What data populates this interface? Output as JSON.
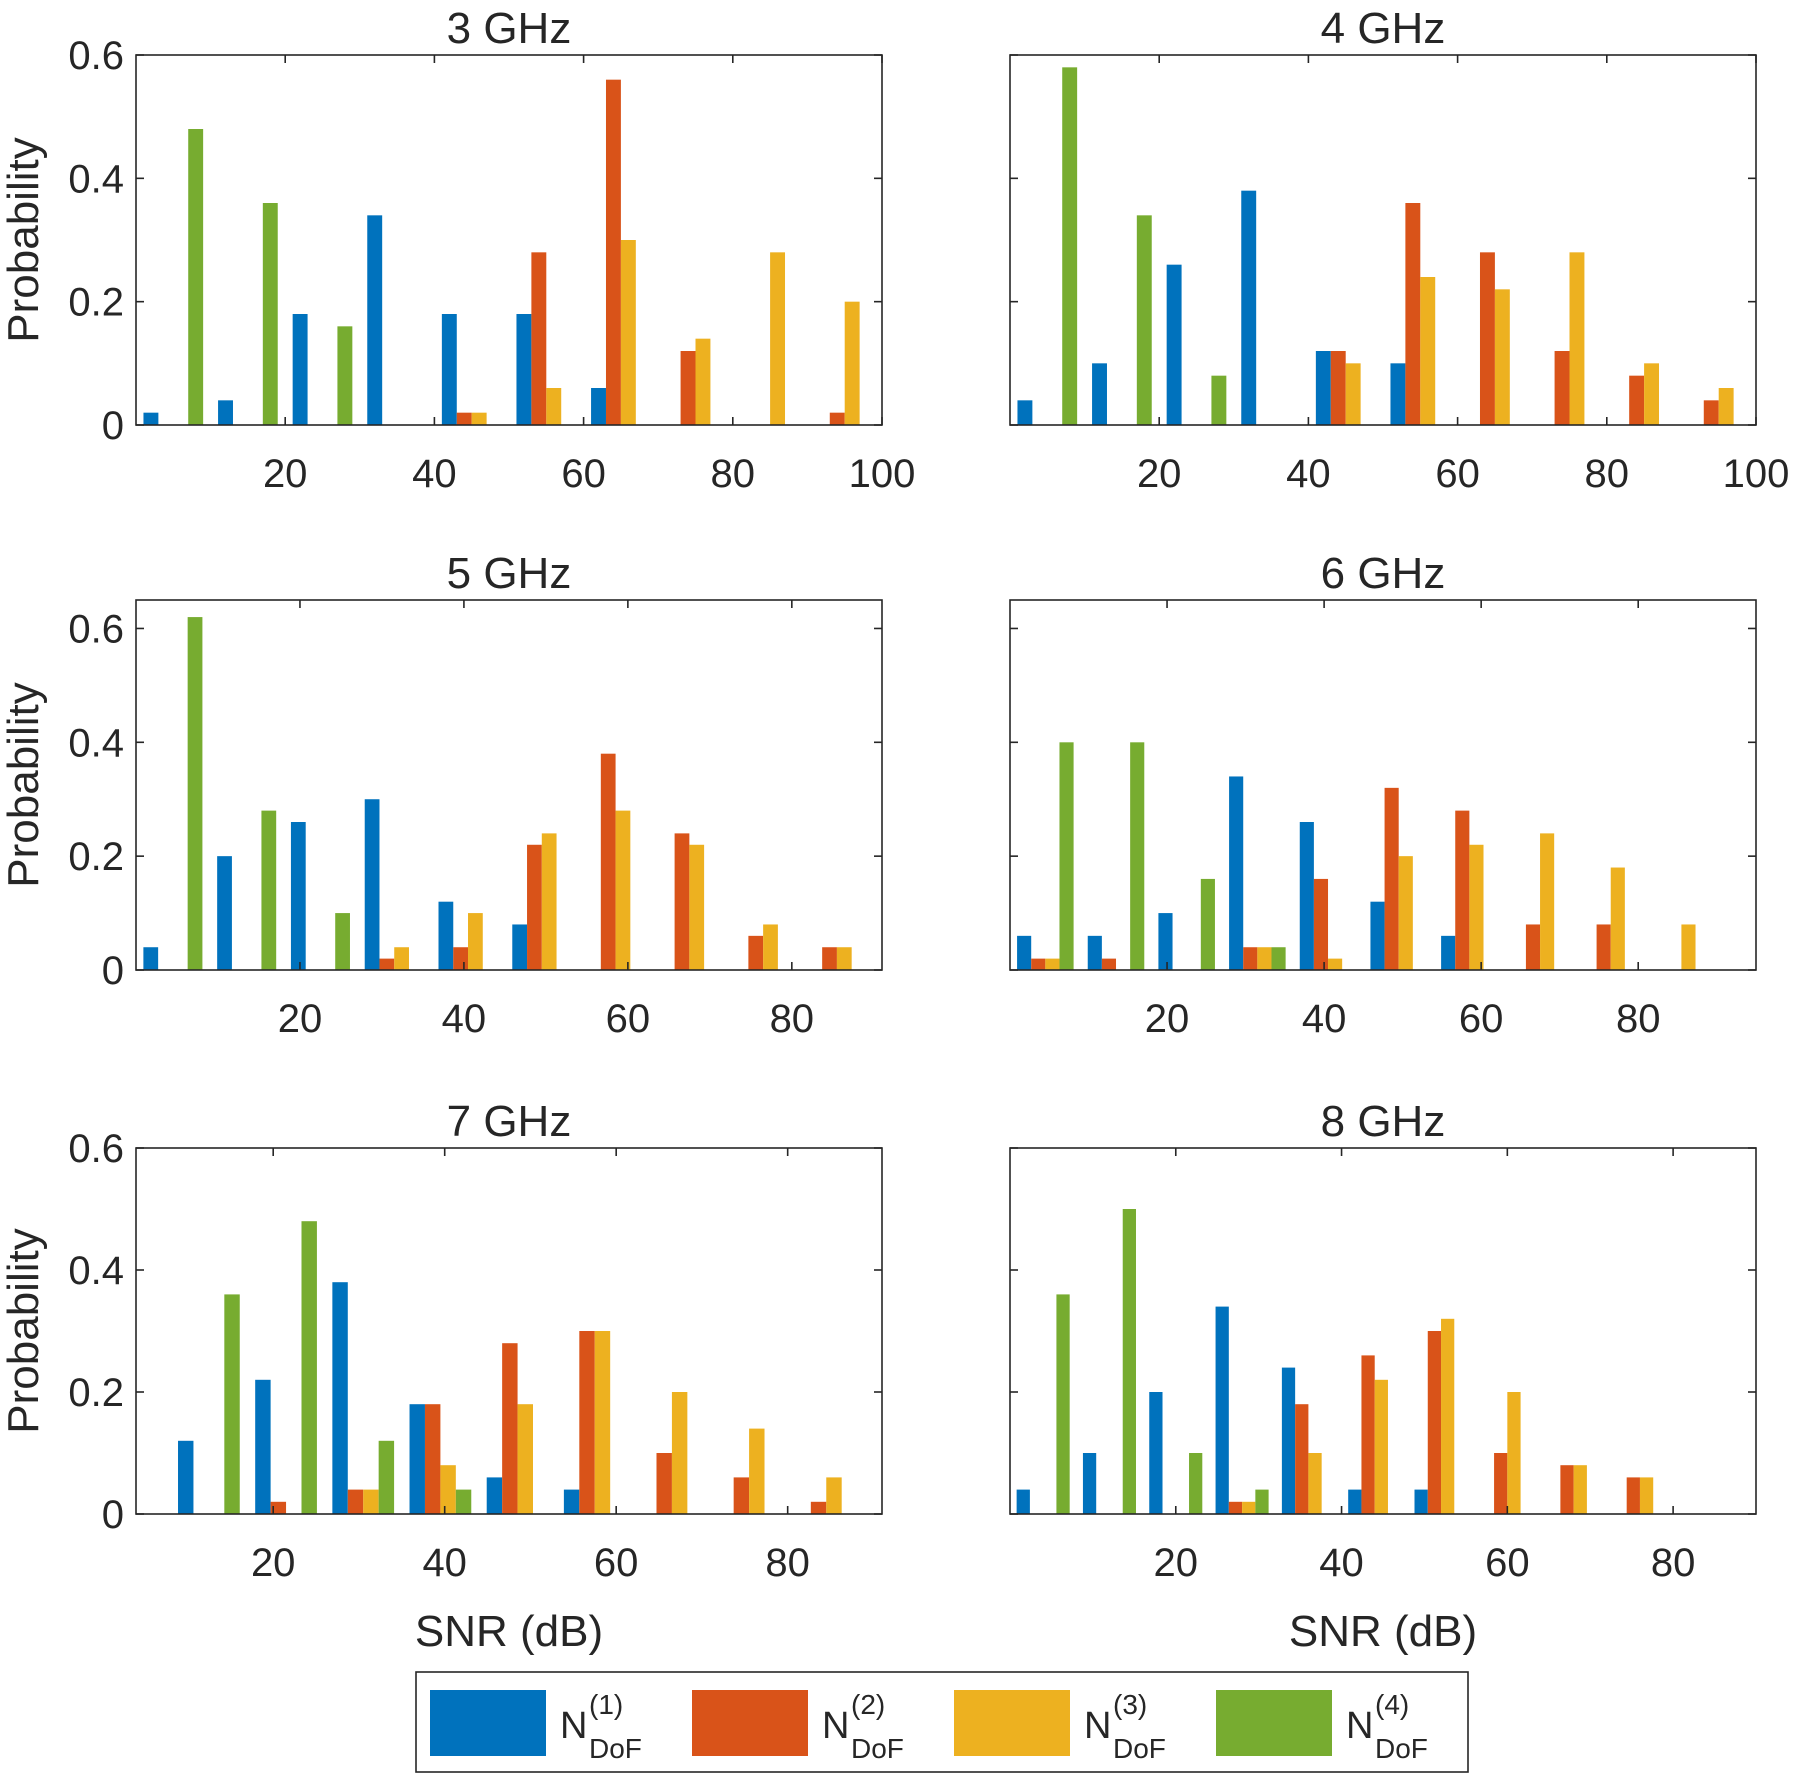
{
  "colors": {
    "N1": "#0072BD",
    "N2": "#D95319",
    "N3": "#EDB120",
    "N4": "#77AC30",
    "axis": "#262626"
  },
  "legend": {
    "items": [
      {
        "key": "N1",
        "base": "N",
        "sub": "DoF",
        "sup": "(1)"
      },
      {
        "key": "N2",
        "base": "N",
        "sub": "DoF",
        "sup": "(2)"
      },
      {
        "key": "N3",
        "base": "N",
        "sub": "DoF",
        "sup": "(3)"
      },
      {
        "key": "N4",
        "base": "N",
        "sub": "DoF",
        "sup": "(4)"
      }
    ]
  },
  "chart_data": [
    {
      "type": "bar",
      "title": "3 GHz",
      "ylabel": "Probability",
      "xlabel": "",
      "xlim": [
        0,
        100
      ],
      "ylim": [
        0,
        0.6
      ],
      "xticks": [
        20,
        40,
        60,
        80,
        100
      ],
      "yticks": [
        "0",
        "0.2",
        "0.4",
        "0.6"
      ],
      "show_ytick_labels": true,
      "bin_centers": [
        5,
        15,
        25,
        35,
        45,
        55,
        65,
        75,
        85,
        95
      ],
      "bin_width": 10,
      "series": [
        {
          "name": "N1",
          "values": [
            0.02,
            0.04,
            0.18,
            0.34,
            0.18,
            0.18,
            0.06,
            0,
            0,
            0
          ]
        },
        {
          "name": "N2",
          "values": [
            0,
            0,
            0,
            0,
            0.02,
            0.28,
            0.56,
            0.12,
            0,
            0.02
          ]
        },
        {
          "name": "N3",
          "values": [
            0,
            0,
            0,
            0,
            0.02,
            0.06,
            0.3,
            0.14,
            0.28,
            0.2
          ]
        },
        {
          "name": "N4",
          "values": [
            0.48,
            0.36,
            0.16,
            0,
            0,
            0,
            0,
            0,
            0,
            0
          ]
        }
      ]
    },
    {
      "type": "bar",
      "title": "4 GHz",
      "ylabel": "",
      "xlabel": "",
      "xlim": [
        0,
        100
      ],
      "ylim": [
        0,
        0.6
      ],
      "xticks": [
        20,
        40,
        60,
        80,
        100
      ],
      "yticks": [
        "0",
        "0.2",
        "0.4",
        "0.6"
      ],
      "show_ytick_labels": false,
      "bin_centers": [
        5,
        15,
        25,
        35,
        45,
        55,
        65,
        75,
        85,
        95
      ],
      "bin_width": 10,
      "series": [
        {
          "name": "N1",
          "values": [
            0.04,
            0.1,
            0.26,
            0.38,
            0.12,
            0.1,
            0,
            0,
            0,
            0
          ]
        },
        {
          "name": "N2",
          "values": [
            0,
            0,
            0,
            0,
            0.12,
            0.36,
            0.28,
            0.12,
            0.08,
            0.04
          ]
        },
        {
          "name": "N3",
          "values": [
            0,
            0,
            0,
            0,
            0.1,
            0.24,
            0.22,
            0.28,
            0.1,
            0.06
          ]
        },
        {
          "name": "N4",
          "values": [
            0.58,
            0.34,
            0.08,
            0,
            0,
            0,
            0,
            0,
            0,
            0
          ]
        }
      ]
    },
    {
      "type": "bar",
      "title": "5 GHz",
      "ylabel": "Probability",
      "xlabel": "",
      "xlim": [
        0,
        91
      ],
      "ylim": [
        0,
        0.65
      ],
      "xticks": [
        20,
        40,
        60,
        80
      ],
      "yticks": [
        "0",
        "0.2",
        "0.4",
        "0.6"
      ],
      "show_ytick_labels": true,
      "bin_centers": [
        4.5,
        13.5,
        22.5,
        31.5,
        40.5,
        49.5,
        58.5,
        67.5,
        76.5,
        85.5
      ],
      "bin_width": 9,
      "series": [
        {
          "name": "N1",
          "values": [
            0.04,
            0.2,
            0.26,
            0.3,
            0.12,
            0.08,
            0,
            0,
            0,
            0
          ]
        },
        {
          "name": "N2",
          "values": [
            0,
            0,
            0,
            0.02,
            0.04,
            0.22,
            0.38,
            0.24,
            0.06,
            0.04
          ]
        },
        {
          "name": "N3",
          "values": [
            0,
            0,
            0,
            0.04,
            0.1,
            0.24,
            0.28,
            0.22,
            0.08,
            0.04
          ]
        },
        {
          "name": "N4",
          "values": [
            0.62,
            0.28,
            0.1,
            0,
            0,
            0,
            0,
            0,
            0,
            0
          ]
        }
      ]
    },
    {
      "type": "bar",
      "title": "6 GHz",
      "ylabel": "",
      "xlabel": "",
      "xlim": [
        0,
        95
      ],
      "ylim": [
        0,
        0.65
      ],
      "xticks": [
        20,
        40,
        60,
        80
      ],
      "yticks": [
        "0",
        "0.2",
        "0.4",
        "0.6"
      ],
      "show_ytick_labels": false,
      "bin_centers": [
        4.5,
        13.5,
        22.5,
        31.5,
        40.5,
        49.5,
        58.5,
        67.5,
        76.5,
        85.5
      ],
      "bin_width": 9,
      "series": [
        {
          "name": "N1",
          "values": [
            0.06,
            0.06,
            0.1,
            0.34,
            0.26,
            0.12,
            0.06,
            0,
            0,
            0
          ]
        },
        {
          "name": "N2",
          "values": [
            0.02,
            0.02,
            0,
            0.04,
            0.16,
            0.32,
            0.28,
            0.08,
            0.08,
            0
          ]
        },
        {
          "name": "N3",
          "values": [
            0.02,
            0,
            0,
            0.04,
            0.02,
            0.2,
            0.22,
            0.24,
            0.18,
            0.08
          ]
        },
        {
          "name": "N4",
          "values": [
            0.4,
            0.4,
            0.16,
            0.04,
            0,
            0,
            0,
            0,
            0,
            0
          ]
        }
      ]
    },
    {
      "type": "bar",
      "title": "7 GHz",
      "ylabel": "Probability",
      "xlabel": "SNR (dB)",
      "xlim": [
        4,
        91
      ],
      "ylim": [
        0,
        0.6
      ],
      "xticks": [
        20,
        40,
        60,
        80
      ],
      "yticks": [
        "0",
        "0.2",
        "0.4",
        "0.6"
      ],
      "show_ytick_labels": true,
      "bin_centers": [
        12.5,
        21.5,
        30.5,
        39.5,
        48.5,
        57.5,
        66.5,
        75.5,
        84.5,
        93.5
      ],
      "bin_width": 9,
      "series": [
        {
          "name": "N1",
          "values": [
            0.12,
            0.22,
            0.38,
            0.18,
            0.06,
            0.04,
            0,
            0,
            0,
            0
          ]
        },
        {
          "name": "N2",
          "values": [
            0,
            0.02,
            0.04,
            0.18,
            0.28,
            0.3,
            0.1,
            0.06,
            0.02,
            0
          ]
        },
        {
          "name": "N3",
          "values": [
            0,
            0,
            0.04,
            0.08,
            0.18,
            0.3,
            0.2,
            0.14,
            0.06,
            0
          ]
        },
        {
          "name": "N4",
          "values": [
            0.36,
            0.48,
            0.12,
            0.04,
            0,
            0,
            0,
            0,
            0,
            0
          ]
        }
      ]
    },
    {
      "type": "bar",
      "title": "8 GHz",
      "ylabel": "",
      "xlabel": "SNR (dB)",
      "xlim": [
        0,
        90
      ],
      "ylim": [
        0,
        0.6
      ],
      "xticks": [
        20,
        40,
        60,
        80
      ],
      "yticks": [
        "0",
        "0.2",
        "0.4",
        "0.6"
      ],
      "show_ytick_labels": false,
      "bin_centers": [
        4,
        12,
        20,
        28,
        36,
        44,
        52,
        60,
        68,
        76,
        84
      ],
      "bin_width": 8,
      "series": [
        {
          "name": "N1",
          "values": [
            0.04,
            0.1,
            0.2,
            0.34,
            0.24,
            0.04,
            0.04,
            0,
            0,
            0,
            0
          ]
        },
        {
          "name": "N2",
          "values": [
            0,
            0,
            0,
            0.02,
            0.18,
            0.26,
            0.3,
            0.1,
            0.08,
            0.06,
            0
          ]
        },
        {
          "name": "N3",
          "values": [
            0,
            0,
            0,
            0.02,
            0.1,
            0.22,
            0.32,
            0.2,
            0.08,
            0.06,
            0
          ]
        },
        {
          "name": "N4",
          "values": [
            0.36,
            0.5,
            0.1,
            0.04,
            0,
            0,
            0,
            0,
            0,
            0,
            0
          ]
        }
      ]
    }
  ]
}
